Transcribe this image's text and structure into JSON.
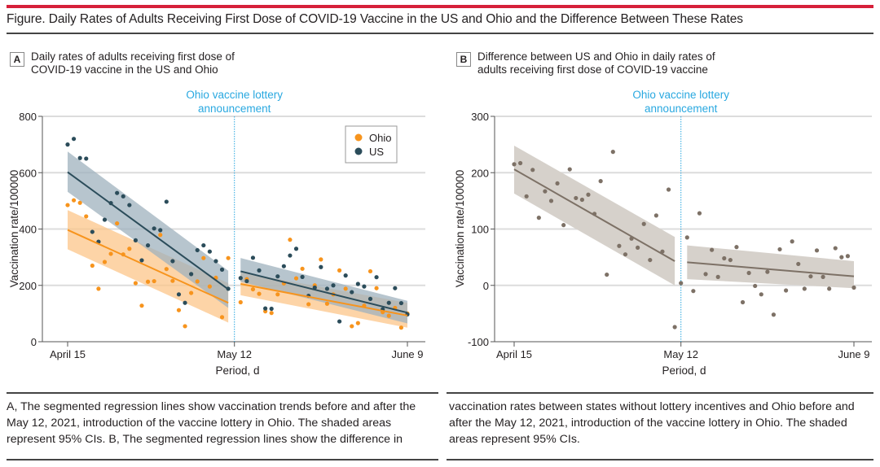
{
  "figure": {
    "title": "Figure. Daily Rates of Adults Receiving First Dose of COVID-19 Vaccine in the US and Ohio and the Difference Between These Rates",
    "caption_left": "A, The segmented regression lines show vaccination trends before and after the May 12, 2021, introduction of the vaccine lottery in Ohio. The shaded areas represent 95% CIs. B, The segmented regression lines show the difference in",
    "caption_right": "vaccination rates between states without lottery incentives and Ohio before and after the May 12, 2021, introduction of the vaccine lottery in Ohio. The shaded areas represent 95% CIs."
  },
  "panels": {
    "a": {
      "label": "A",
      "title_line1": "Daily rates of adults receiving first dose of",
      "title_line2": "COVID-19 vaccine in the US and Ohio"
    },
    "b": {
      "label": "B",
      "title_line1": "Difference between US and Ohio in daily rates of",
      "title_line2": "adults receiving first dose of COVID-19 vaccine"
    }
  },
  "colors": {
    "ohio": "#f7941d",
    "us": "#2b4c5a",
    "ohio_band": "#fcc68a",
    "us_band": "#9fb2bd",
    "diff": "#7d7166",
    "diff_band": "#d6d1cb",
    "annotation": "#29a8e0",
    "accent_rule": "#d6203a"
  },
  "chart_data": [
    {
      "type": "scatter",
      "panel": "A",
      "title": "Daily rates of adults receiving first dose of COVID-19 vaccine in the US and Ohio",
      "xlabel": "Period, d",
      "ylabel": "Vaccination rate/100000",
      "ylim": [
        0,
        800
      ],
      "yticks": [
        0,
        200,
        400,
        600,
        800
      ],
      "ytick_labels": [
        "0",
        "200",
        "400",
        "600",
        "800"
      ],
      "xlim_days": [
        0,
        55
      ],
      "xticks_days": [
        0,
        27,
        55
      ],
      "xtick_labels": [
        "April 15",
        "May 12",
        "June 9"
      ],
      "grid": "horizontal",
      "legend": {
        "placement": "top-right",
        "entries": [
          "Ohio",
          "US"
        ]
      },
      "annotation": {
        "text_line1": "Ohio vaccine lottery",
        "text_line2": "announcement",
        "x_day": 27
      },
      "series": [
        {
          "name": "Ohio",
          "points": [
            [
              0,
              485
            ],
            [
              1,
              502
            ],
            [
              2,
              493
            ],
            [
              3,
              445
            ],
            [
              4,
              270
            ],
            [
              5,
              188
            ],
            [
              6,
              283
            ],
            [
              7,
              312
            ],
            [
              8,
              420
            ],
            [
              9,
              310
            ],
            [
              10,
              330
            ],
            [
              11,
              208
            ],
            [
              12,
              128
            ],
            [
              13,
              213
            ],
            [
              14,
              215
            ],
            [
              15,
              379
            ],
            [
              16,
              258
            ],
            [
              17,
              216
            ],
            [
              18,
              112
            ],
            [
              19,
              55
            ],
            [
              20,
              173
            ],
            [
              21,
              214
            ],
            [
              22,
              297
            ],
            [
              23,
              196
            ],
            [
              24,
              227
            ],
            [
              25,
              87
            ],
            [
              26,
              297
            ],
            [
              28,
              140
            ],
            [
              29,
              222
            ],
            [
              30,
              186
            ],
            [
              31,
              170
            ],
            [
              32,
              108
            ],
            [
              33,
              102
            ],
            [
              34,
              168
            ],
            [
              35,
              207
            ],
            [
              36,
              362
            ],
            [
              37,
              225
            ],
            [
              38,
              259
            ],
            [
              39,
              133
            ],
            [
              40,
              200
            ],
            [
              41,
              292
            ],
            [
              42,
              135
            ],
            [
              43,
              168
            ],
            [
              44,
              253
            ],
            [
              45,
              188
            ],
            [
              46,
              55
            ],
            [
              47,
              66
            ],
            [
              48,
              128
            ],
            [
              49,
              250
            ],
            [
              50,
              190
            ],
            [
              51,
              105
            ],
            [
              52,
              92
            ],
            [
              53,
              120
            ],
            [
              54,
              50
            ],
            [
              55,
              100
            ]
          ],
          "segments": [
            {
              "x": [
                0,
                26
              ],
              "fit": [
                397,
                138
              ],
              "ci_low": [
                328,
                68
              ],
              "ci_high": [
                467,
                208
              ]
            },
            {
              "x": [
                28,
                55
              ],
              "fit": [
                205,
                93
              ],
              "ci_low": [
                165,
                50
              ],
              "ci_high": [
                247,
                138
              ]
            }
          ]
        },
        {
          "name": "US",
          "points": [
            [
              0,
              700
            ],
            [
              1,
              720
            ],
            [
              2,
              652
            ],
            [
              3,
              650
            ],
            [
              4,
              390
            ],
            [
              5,
              355
            ],
            [
              6,
              433
            ],
            [
              7,
              492
            ],
            [
              8,
              528
            ],
            [
              9,
              516
            ],
            [
              10,
              485
            ],
            [
              11,
              360
            ],
            [
              12,
              289
            ],
            [
              13,
              342
            ],
            [
              14,
              402
            ],
            [
              15,
              396
            ],
            [
              16,
              497
            ],
            [
              17,
              286
            ],
            [
              18,
              168
            ],
            [
              19,
              138
            ],
            [
              20,
              240
            ],
            [
              21,
              325
            ],
            [
              22,
              342
            ],
            [
              23,
              320
            ],
            [
              24,
              286
            ],
            [
              25,
              256
            ],
            [
              26,
              188
            ],
            [
              28,
              226
            ],
            [
              29,
              215
            ],
            [
              30,
              298
            ],
            [
              31,
              253
            ],
            [
              32,
              118
            ],
            [
              33,
              117
            ],
            [
              34,
              232
            ],
            [
              35,
              268
            ],
            [
              36,
              306
            ],
            [
              37,
              330
            ],
            [
              38,
              230
            ],
            [
              39,
              163
            ],
            [
              40,
              192
            ],
            [
              41,
              265
            ],
            [
              42,
              188
            ],
            [
              43,
              200
            ],
            [
              44,
              72
            ],
            [
              45,
              235
            ],
            [
              46,
              176
            ],
            [
              47,
              205
            ],
            [
              48,
              196
            ],
            [
              49,
              152
            ],
            [
              50,
              229
            ],
            [
              51,
              115
            ],
            [
              52,
              138
            ],
            [
              53,
              190
            ],
            [
              54,
              137
            ],
            [
              55,
              97
            ]
          ],
          "segments": [
            {
              "x": [
                0,
                26
              ],
              "fit": [
                602,
                186
              ],
              "ci_low": [
                532,
                120
              ],
              "ci_high": [
                675,
                252
              ]
            },
            {
              "x": [
                28,
                55
              ],
              "fit": [
                250,
                103
              ],
              "ci_low": [
                213,
                65
              ],
              "ci_high": [
                297,
                145
              ]
            }
          ]
        }
      ]
    },
    {
      "type": "scatter",
      "panel": "B",
      "title": "Difference between US and Ohio in daily rates of adults receiving first dose of COVID-19 vaccine",
      "xlabel": "Period, d",
      "ylabel": "Vaccination rate/100000",
      "ylim": [
        -100,
        300
      ],
      "yticks": [
        -100,
        0,
        100,
        200,
        300
      ],
      "ytick_labels": [
        "-100",
        "0",
        "100",
        "200",
        "300"
      ],
      "xlim_days": [
        0,
        55
      ],
      "xticks_days": [
        0,
        27,
        55
      ],
      "xtick_labels": [
        "April 15",
        "May 12",
        "June 9"
      ],
      "grid": "horizontal",
      "annotation": {
        "text_line1": "Ohio vaccine lottery",
        "text_line2": "announcement",
        "x_day": 27
      },
      "series": [
        {
          "name": "US minus Ohio",
          "points": [
            [
              0,
              215
            ],
            [
              1,
              217
            ],
            [
              2,
              158
            ],
            [
              3,
              205
            ],
            [
              4,
              120
            ],
            [
              5,
              167
            ],
            [
              6,
              150
            ],
            [
              7,
              181
            ],
            [
              8,
              107
            ],
            [
              9,
              206
            ],
            [
              10,
              155
            ],
            [
              11,
              152
            ],
            [
              12,
              161
            ],
            [
              13,
              127
            ],
            [
              14,
              185
            ],
            [
              15,
              19
            ],
            [
              16,
              237
            ],
            [
              17,
              70
            ],
            [
              18,
              55
            ],
            [
              19,
              83
            ],
            [
              20,
              67
            ],
            [
              21,
              109
            ],
            [
              22,
              45
            ],
            [
              23,
              124
            ],
            [
              24,
              60
            ],
            [
              25,
              170
            ],
            [
              26,
              -74
            ],
            [
              27,
              4
            ],
            [
              28,
              85
            ],
            [
              29,
              -10
            ],
            [
              30,
              128
            ],
            [
              31,
              20
            ],
            [
              32,
              63
            ],
            [
              33,
              15
            ],
            [
              34,
              48
            ],
            [
              35,
              45
            ],
            [
              36,
              68
            ],
            [
              37,
              -30
            ],
            [
              38,
              22
            ],
            [
              39,
              -1
            ],
            [
              40,
              -16
            ],
            [
              41,
              24
            ],
            [
              42,
              -52
            ],
            [
              43,
              64
            ],
            [
              44,
              -9
            ],
            [
              45,
              78
            ],
            [
              46,
              38
            ],
            [
              47,
              -6
            ],
            [
              48,
              16
            ],
            [
              49,
              62
            ],
            [
              50,
              15
            ],
            [
              51,
              -6
            ],
            [
              52,
              66
            ],
            [
              53,
              50
            ],
            [
              54,
              52
            ],
            [
              55,
              -4
            ]
          ],
          "segments": [
            {
              "x": [
                0,
                26
              ],
              "fit": [
                206,
                43
              ],
              "ci_low": [
                163,
                0
              ],
              "ci_high": [
                248,
                86
              ]
            },
            {
              "x": [
                28,
                55
              ],
              "fit": [
                41,
                16
              ],
              "ci_low": [
                11,
                -5
              ],
              "ci_high": [
                71,
                43
              ]
            }
          ]
        }
      ]
    }
  ]
}
